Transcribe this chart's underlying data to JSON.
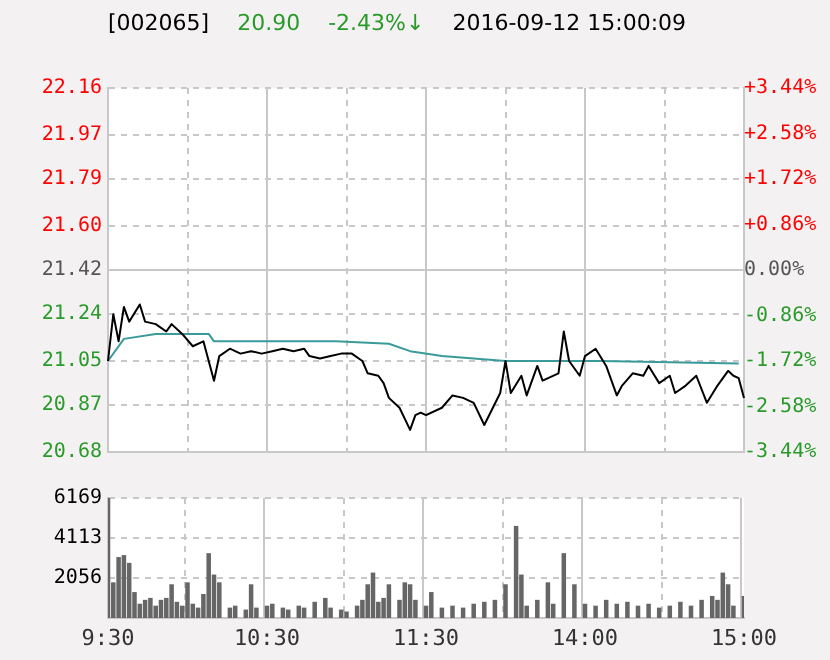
{
  "chart_data": [
    {
      "type": "line",
      "title": "[002065]",
      "annotations": [
        "20.90",
        "-2.43%↓",
        "2016-09-12 15:00:09"
      ],
      "tick_labels": "y",
      "categories": [
        null,
        null,
        null,
        null,
        null,
        null,
        null,
        null,
        null,
        null,
        null,
        null,
        null,
        null,
        null,
        null,
        null,
        null,
        null,
        null,
        null,
        null,
        null,
        null,
        null,
        null,
        null,
        null,
        null,
        null,
        null,
        null,
        null,
        null,
        null,
        null,
        null,
        null,
        null,
        null,
        null,
        null,
        null,
        null,
        null,
        null,
        null,
        null,
        null,
        null,
        null,
        null,
        null,
        null,
        null,
        null,
        null,
        null,
        null,
        null,
        null,
        null,
        null,
        null,
        null,
        null,
        null,
        null,
        null,
        null,
        null,
        null,
        null,
        null,
        null,
        null,
        null,
        null,
        null,
        null,
        null,
        null,
        null,
        null,
        null,
        null,
        null,
        null,
        null,
        null,
        null,
        null,
        null,
        null,
        null,
        null,
        null,
        null,
        null,
        null,
        null,
        null,
        null,
        null,
        null,
        null,
        null,
        null,
        null,
        null,
        null,
        null,
        null,
        null,
        null,
        null,
        null,
        null,
        null,
        null,
        null
      ],
      "ylim": [
        20.68,
        22.16
      ],
      "yticks": [
        20.68,
        20.87,
        21.05,
        21.24,
        21.42,
        {
          "value": 21.6,
          "label": "21.60"
        },
        21.79,
        21.97,
        22.16
      ],
      "y2lim": [
        -3.44,
        3.44
      ],
      "y2ticks": [
        {
          "value": -3.44,
          "label": "-3.44%"
        },
        {
          "value": -2.58,
          "label": "-2.58%"
        },
        {
          "value": -1.72,
          "label": "-1.72%"
        },
        {
          "value": -0.86,
          "label": "-0.86%"
        },
        {
          "value": 0,
          "label": "0.00%"
        },
        {
          "value": 0.86,
          "label": "+0.86%"
        },
        {
          "value": 1.72,
          "label": "+1.72%"
        },
        {
          "value": 2.58,
          "label": "+2.58%"
        },
        {
          "value": 3.44,
          "label": "+3.44%"
        }
      ],
      "grid": true,
      "legend": false,
      "series": [
        {
          "color": "#000000",
          "values": [
            21.05,
            21.24,
            21.13,
            21.27,
            21.21,
            null,
            21.28,
            21.21,
            null,
            21.2,
            null,
            21.17,
            21.2,
            null,
            21.16,
            null,
            21.11,
            null,
            21.13,
            21.05,
            20.97,
            21.07,
            null,
            21.1,
            null,
            21.08,
            null,
            21.09,
            null,
            21.08,
            null,
            21.09,
            null,
            21.1,
            null,
            21.09,
            null,
            21.1,
            21.07,
            null,
            21.06,
            null,
            21.07,
            null,
            21.08,
            null,
            21.08,
            null,
            21.05,
            21.0,
            null,
            20.99,
            20.96,
            20.9,
            null,
            20.86,
            null,
            20.77,
            20.83,
            20.84,
            20.83,
            null,
            null,
            20.86,
            null,
            20.91,
            null,
            20.9,
            null,
            20.88,
            null,
            20.79,
            null,
            null,
            20.92,
            21.05,
            20.92,
            null,
            20.99,
            20.91,
            null,
            21.03,
            20.97,
            null,
            null,
            21.0,
            21.17,
            21.05,
            null,
            20.99,
            21.07,
            null,
            21.1,
            null,
            21.03,
            null,
            20.91,
            20.95,
            null,
            21.0,
            null,
            20.99,
            21.03,
            null,
            20.96,
            null,
            20.99,
            20.92,
            null,
            20.95,
            null,
            20.99,
            null,
            20.88,
            null,
            20.95,
            null,
            21.01,
            20.99,
            20.98,
            20.9
          ]
        },
        {
          "color": "#3a9a9a",
          "values": [
            21.05,
            null,
            null,
            21.14,
            null,
            null,
            null,
            null,
            null,
            21.16,
            null,
            null,
            null,
            null,
            null,
            null,
            null,
            null,
            null,
            21.16,
            21.13,
            null,
            null,
            null,
            null,
            null,
            null,
            null,
            null,
            null,
            null,
            null,
            null,
            null,
            null,
            null,
            null,
            null,
            null,
            null,
            null,
            null,
            null,
            21.13,
            null,
            null,
            null,
            null,
            null,
            null,
            null,
            null,
            null,
            21.12,
            null,
            null,
            null,
            21.09,
            null,
            null,
            null,
            null,
            null,
            21.07,
            null,
            null,
            null,
            null,
            null,
            null,
            null,
            null,
            null,
            null,
            null,
            21.05,
            null,
            null,
            null,
            null,
            null,
            null,
            null,
            null,
            null,
            null,
            null,
            null,
            null,
            null,
            null,
            null,
            null,
            21.05,
            null,
            null,
            null,
            null,
            null,
            null,
            null,
            null,
            null,
            null,
            null,
            null,
            null,
            null,
            null,
            null,
            null,
            null,
            null,
            null,
            null,
            null,
            null,
            null,
            null,
            21.04,
            null
          ]
        }
      ]
    },
    {
      "type": "bar",
      "color": "#666666",
      "categories": [
        "9:30",
        null,
        null,
        null,
        null,
        null,
        null,
        null,
        null,
        null,
        null,
        null,
        null,
        null,
        null,
        null,
        null,
        null,
        null,
        null,
        null,
        null,
        null,
        null,
        null,
        null,
        null,
        null,
        null,
        null,
        "10:30",
        null,
        null,
        null,
        null,
        null,
        null,
        null,
        null,
        null,
        null,
        null,
        null,
        null,
        null,
        null,
        null,
        null,
        null,
        null,
        null,
        null,
        null,
        null,
        null,
        null,
        null,
        null,
        null,
        null,
        "11:30",
        null,
        null,
        null,
        null,
        null,
        null,
        null,
        null,
        null,
        null,
        null,
        null,
        null,
        null,
        null,
        null,
        null,
        null,
        null,
        null,
        null,
        null,
        null,
        null,
        null,
        null,
        null,
        null,
        null,
        "14:00",
        null,
        null,
        null,
        null,
        null,
        null,
        null,
        null,
        null,
        null,
        null,
        null,
        null,
        null,
        null,
        null,
        null,
        null,
        null,
        null,
        null,
        null,
        null,
        null,
        null,
        null,
        null,
        null,
        null,
        "15:00"
      ],
      "ylim": [
        0,
        6169
      ],
      "yticks": [
        2056,
        4113,
        6169
      ],
      "grid": true,
      "legend": false,
      "values": [
        6169,
        1800,
        3100,
        3200,
        2800,
        1300,
        700,
        900,
        1000,
        600,
        900,
        1000,
        1700,
        800,
        600,
        1800,
        700,
        500,
        1200,
        3300,
        2200,
        1800,
        null,
        500,
        600,
        null,
        400,
        1700,
        500,
        null,
        600,
        700,
        null,
        500,
        400,
        null,
        600,
        500,
        null,
        800,
        null,
        1000,
        500,
        null,
        400,
        300,
        null,
        600,
        900,
        1700,
        2300,
        800,
        1000,
        1700,
        null,
        900,
        1800,
        1700,
        900,
        null,
        600,
        1300,
        null,
        500,
        null,
        600,
        null,
        500,
        null,
        700,
        null,
        800,
        null,
        900,
        null,
        1700,
        null,
        4700,
        2200,
        600,
        null,
        900,
        null,
        1800,
        700,
        null,
        3300,
        null,
        1700,
        null,
        700,
        null,
        600,
        null,
        900,
        null,
        700,
        null,
        800,
        null,
        600,
        null,
        700,
        null,
        500,
        null,
        600,
        null,
        800,
        null,
        600,
        null,
        900,
        null,
        1100,
        900,
        2300,
        1700,
        600,
        null,
        1100
      ]
    }
  ]
}
